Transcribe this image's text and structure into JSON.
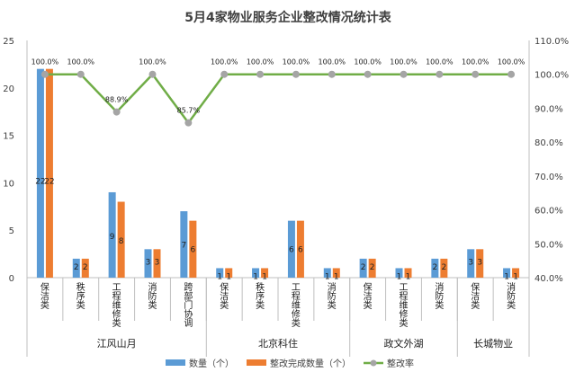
{
  "chart_data": {
    "type": "bar",
    "title": "5月4家物业服务企业整改情况统计表",
    "groups": [
      {
        "name": "江风山月",
        "categories": [
          "保洁类",
          "秩序类",
          "工程维修类",
          "消防类",
          "跨部门协调"
        ]
      },
      {
        "name": "北京科住",
        "categories": [
          "保洁类",
          "秩序类",
          "工程维修类",
          "消防类"
        ]
      },
      {
        "name": "政文外湖",
        "categories": [
          "保洁类",
          "工程维修类",
          "消防类"
        ]
      },
      {
        "name": "长城物业",
        "categories": [
          "保洁类",
          "消防类"
        ]
      }
    ],
    "series": [
      {
        "name": "数量（个）",
        "type": "bar",
        "axis": "left",
        "color": "#5B9BD5",
        "values": [
          22,
          2,
          9,
          3,
          7,
          1,
          1,
          6,
          1,
          2,
          1,
          2,
          3,
          1
        ]
      },
      {
        "name": "整改完成数量（个）",
        "type": "bar",
        "axis": "left",
        "color": "#ED7D31",
        "values": [
          22,
          2,
          8,
          3,
          6,
          1,
          1,
          6,
          1,
          2,
          1,
          2,
          3,
          1
        ]
      },
      {
        "name": "整改率",
        "type": "line",
        "axis": "right",
        "color": "#70AD47",
        "values": [
          1.0,
          1.0,
          0.889,
          1.0,
          0.857,
          1.0,
          1.0,
          1.0,
          1.0,
          1.0,
          1.0,
          1.0,
          1.0,
          1.0
        ],
        "labels": [
          "100.0%",
          "100.0%",
          "88.9%",
          "100.0%",
          "85.7%",
          "100.0%",
          "100.0%",
          "100.0%",
          "100.0%",
          "100.0%",
          "100.0%",
          "100.0%",
          "100.0%",
          "100.0%"
        ]
      }
    ],
    "y_left": {
      "min": 0,
      "max": 25,
      "step": 5,
      "ticks": [
        "0",
        "5",
        "10",
        "15",
        "20",
        "25"
      ]
    },
    "y_right": {
      "min": 0.4,
      "max": 1.1,
      "step": 0.1,
      "ticks": [
        "40.0%",
        "50.0%",
        "60.0%",
        "70.0%",
        "80.0%",
        "90.0%",
        "100.0%",
        "110.0%"
      ]
    },
    "grid": false,
    "legend_position": "bottom"
  }
}
